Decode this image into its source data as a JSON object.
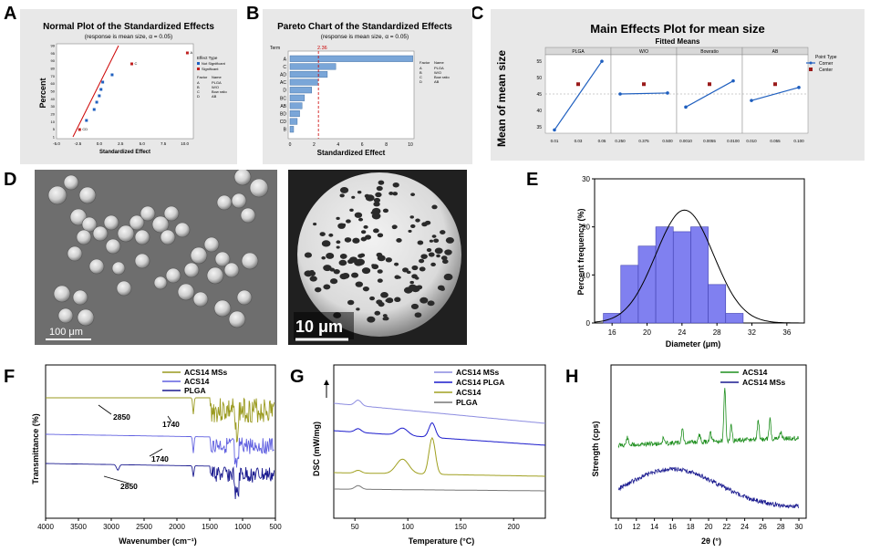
{
  "labels": {
    "A": "A",
    "B": "B",
    "C": "C",
    "D": "D",
    "E": "E",
    "F": "F",
    "G": "G",
    "H": "H"
  },
  "panelA": {
    "title": "Normal Plot of the Standardized Effects",
    "subtitle": "(response is mean size, α = 0.05)",
    "ylabel": "Percent",
    "xlabel": "Standardized Effect",
    "yticks": [
      "99",
      "95",
      "90",
      "80",
      "70",
      "60",
      "50",
      "40",
      "30",
      "20",
      "10",
      "5",
      "1"
    ],
    "xticks": [
      "-5.0",
      "-2.5",
      "0.0",
      "2.5",
      "5.0",
      "7.5",
      "10.0"
    ],
    "legend_title": "Effect Type",
    "legend_items": [
      "Not Significant",
      "Significant"
    ],
    "factor_header": [
      "Factor",
      "Name"
    ],
    "factors": [
      [
        "A",
        "PLGA"
      ],
      [
        "B",
        "W/O"
      ],
      [
        "C",
        "Bow ratio"
      ],
      [
        "D",
        "AB"
      ]
    ],
    "point_labels": [
      "A",
      "C",
      "CD"
    ]
  },
  "panelB": {
    "title": "Pareto Chart of the Standardized Effects",
    "subtitle": "(response is mean size, α = 0.05)",
    "term_label": "Term",
    "ref_value": "2.36",
    "xlabel": "Standardized Effect",
    "xticks": [
      "0",
      "2",
      "4",
      "6",
      "8",
      "10"
    ],
    "factor_header": [
      "Factor",
      "Name"
    ],
    "factors": [
      [
        "A",
        "PLGA"
      ],
      [
        "B",
        "W/O"
      ],
      [
        "C",
        "Bow ratio"
      ],
      [
        "D",
        "AB"
      ]
    ]
  },
  "panelC": {
    "title": "Main Effects Plot for mean size",
    "subtitle": "Fitted Means",
    "ylabel": "Mean of mean size",
    "yticks": [
      "55",
      "50",
      "45",
      "40",
      "35"
    ],
    "facets": [
      {
        "name": "PLGA",
        "ticks": [
          "0.01",
          "0.03",
          "0.05"
        ]
      },
      {
        "name": "W/O",
        "ticks": [
          "0.250",
          "0.375",
          "0.500"
        ]
      },
      {
        "name": "Bowratio",
        "ticks": [
          "0.0010",
          "0.0055",
          "0.0100"
        ]
      },
      {
        "name": "AB",
        "ticks": [
          "0.010",
          "0.055",
          "0.100"
        ]
      }
    ],
    "legend_title": "Point Type",
    "legend_items": [
      "Corner",
      "Center"
    ]
  },
  "panelD": {
    "scale_left": "100 μm",
    "scale_right": "10 μm"
  },
  "panelF": {
    "ylabel": "Transmittance (%)",
    "xlabel": "Wavenumber (cm⁻¹)",
    "xticks": [
      "4000",
      "3500",
      "3000",
      "2500",
      "2000",
      "1500",
      "1000",
      "500"
    ],
    "legend": [
      "ACS14 MSs",
      "ACS14",
      "PLGA"
    ],
    "annotations": [
      "2850",
      "1740",
      "1740",
      "2850"
    ],
    "colors": [
      "#9a9a1f",
      "#6060e0",
      "#1a1a8f"
    ]
  },
  "panelG": {
    "ylabel": "DSC (mW/mg)",
    "xlabel": "Temperature (°C)",
    "xticks": [
      "50",
      "100",
      "150",
      "200"
    ],
    "legend": [
      "ACS14 MSs",
      "ACS14 PLGA",
      "ACS14",
      "PLGA"
    ],
    "colors": [
      "#8c8ce0",
      "#1a1acc",
      "#a0a020",
      "#777777"
    ]
  },
  "panelH": {
    "ylabel": "Strength (cps)",
    "xlabel": "2θ (°)",
    "xticks": [
      "10",
      "12",
      "14",
      "16",
      "18",
      "20",
      "22",
      "24",
      "26",
      "28",
      "30"
    ],
    "legend": [
      "ACS14",
      "ACS14 MSs"
    ],
    "colors": [
      "#1f8f1f",
      "#1a1a8f"
    ]
  },
  "chart_data": [
    {
      "type": "scatter",
      "id": "A",
      "title": "Normal Plot of the Standardized Effects",
      "xlabel": "Standardized Effect",
      "ylabel": "Percent",
      "xlim": [
        -5,
        11
      ],
      "series": [
        {
          "name": "Not Significant",
          "x": [
            -1.5,
            -0.6,
            -0.3,
            0.0,
            0.2,
            0.4,
            1.5
          ],
          "y": [
            18,
            30,
            38,
            45,
            52,
            60,
            68
          ]
        },
        {
          "name": "Significant",
          "x": [
            -2.3,
            3.8,
            10.3
          ],
          "y": [
            8,
            80,
            92
          ]
        }
      ]
    },
    {
      "type": "bar",
      "id": "B",
      "title": "Pareto Chart of the Standardized Effects",
      "xlabel": "Standardized Effect",
      "xlim": [
        0,
        10
      ],
      "categories": [
        "A",
        "C",
        "AD",
        "AC",
        "D",
        "BC",
        "AB",
        "BD",
        "CD",
        "B"
      ],
      "values": [
        10.2,
        3.8,
        3.1,
        2.3,
        1.8,
        1.2,
        1.0,
        0.8,
        0.6,
        0.3
      ]
    },
    {
      "type": "line",
      "id": "C",
      "title": "Main Effects Plot for mean size",
      "ylabel": "Mean of mean size",
      "ylim": [
        33,
        57
      ],
      "series": [
        {
          "name": "PLGA",
          "values": [
            34,
            55
          ],
          "center": 48
        },
        {
          "name": "W/O",
          "values": [
            45,
            45.3
          ],
          "center": 48
        },
        {
          "name": "Bowratio",
          "values": [
            41,
            49
          ],
          "center": 48
        },
        {
          "name": "AB",
          "values": [
            43,
            47
          ],
          "center": 48
        }
      ]
    },
    {
      "type": "bar",
      "id": "E",
      "xlabel": "Diameter (μm)",
      "ylabel": "Percent frequency (%)",
      "ylim": [
        0,
        30
      ],
      "xlim": [
        14,
        38
      ],
      "categories": [
        "16",
        "18",
        "20",
        "22",
        "24",
        "26",
        "28",
        "30"
      ],
      "values": [
        2,
        12,
        16,
        20,
        19,
        20,
        8,
        2
      ]
    }
  ]
}
